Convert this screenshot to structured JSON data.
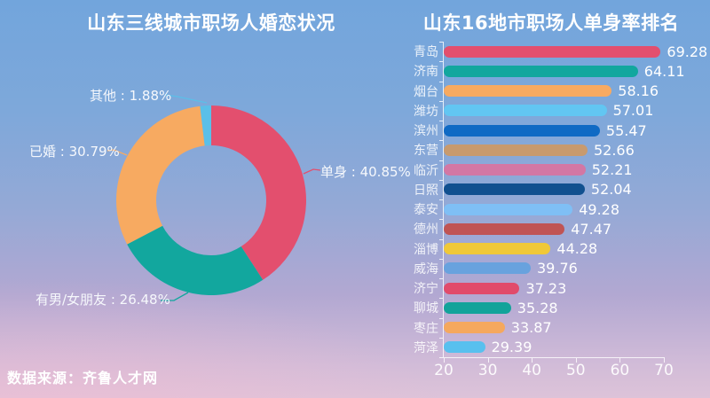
{
  "footer": {
    "text": "数据来源：齐鲁人才网"
  },
  "chart_data": [
    {
      "type": "pie",
      "subtype": "donut",
      "title": "山东三线城市职场人婚恋状况",
      "legend_position": "none",
      "inner_radius_ratio": 0.58,
      "slices": [
        {
          "label": "单身",
          "value": 40.85,
          "label_text": "单身 : 40.85%",
          "color": "#e34f6e"
        },
        {
          "label": "有男/女朋友",
          "value": 26.48,
          "label_text": "有男/女朋友 : 26.48%",
          "color": "#12a79e"
        },
        {
          "label": "已婚",
          "value": 30.79,
          "label_text": "已婚 : 30.79%",
          "color": "#f7aa61"
        },
        {
          "label": "其他",
          "value": 1.88,
          "label_text": "其他 : 1.88%",
          "color": "#5bbfe8"
        }
      ]
    },
    {
      "type": "bar",
      "orientation": "horizontal",
      "title": "山东16地市职场人单身率排名",
      "xlim": [
        20,
        70
      ],
      "x_ticks": [
        20,
        30,
        40,
        50,
        60,
        70
      ],
      "grid": false,
      "categories": [
        "青岛",
        "济南",
        "烟台",
        "潍坊",
        "滨州",
        "东营",
        "临沂",
        "日照",
        "泰安",
        "德州",
        "淄博",
        "威海",
        "济宁",
        "聊城",
        "枣庄",
        "菏泽"
      ],
      "values": [
        69.28,
        64.11,
        58.16,
        57.01,
        55.47,
        52.66,
        52.21,
        52.04,
        49.28,
        47.47,
        44.28,
        39.76,
        37.23,
        35.28,
        33.87,
        29.39
      ],
      "value_labels": [
        "69.28",
        "64.11",
        "58.16",
        "57.01",
        "55.47",
        "52.66",
        "52.21",
        "52.04",
        "49.28",
        "47.47",
        "44.28",
        "39.76",
        "37.23",
        "35.28",
        "33.87",
        "29.39"
      ],
      "colors": [
        "#e34f6e",
        "#12a79e",
        "#f7aa61",
        "#62c6f2",
        "#0f6ac4",
        "#c89a6e",
        "#d377a4",
        "#11508f",
        "#7fbff5",
        "#c05454",
        "#f0c838",
        "#68a2de",
        "#e14b6b",
        "#12a39a",
        "#f5a85e",
        "#58c0ee"
      ]
    }
  ]
}
